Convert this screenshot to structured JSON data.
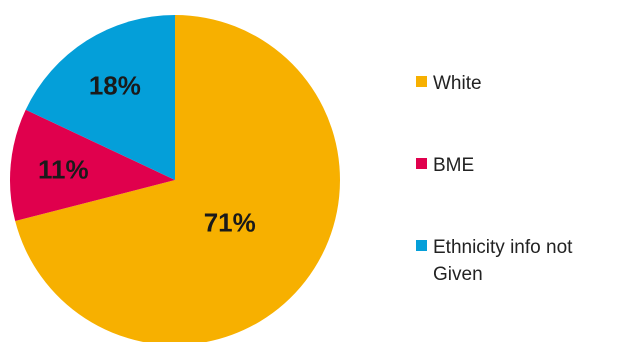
{
  "chart_data": {
    "type": "pie",
    "categories": [
      "White",
      "BME",
      "Ethnicity info not Given"
    ],
    "values": [
      71,
      11,
      18
    ],
    "value_labels": [
      "71%",
      "11%",
      "18%"
    ],
    "colors": [
      "#f7b000",
      "#e0004d",
      "#049fd9"
    ],
    "start_angle_deg": 0,
    "direction": "clockwise",
    "legend_position": "right"
  },
  "legend": {
    "items": [
      {
        "label": "White",
        "color": "#f7b000"
      },
      {
        "label": "BME",
        "color": "#e0004d"
      },
      {
        "label": "Ethnicity info not Given",
        "color": "#049fd9"
      }
    ]
  }
}
